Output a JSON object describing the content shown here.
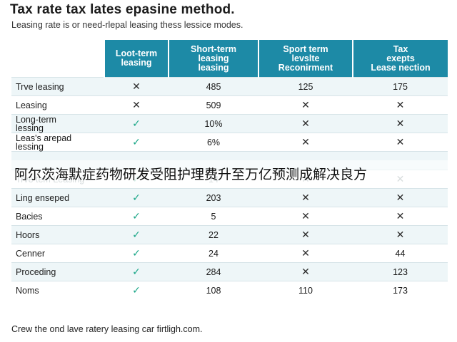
{
  "title": "Tax rate tax lates epasine method.",
  "subtitle": "Leasing rate is or need-rlepal leasing thess lessice modes.",
  "table": {
    "headers": [
      "",
      "Loot-term\nleasing",
      "Short-term\nleasing\nleasing",
      "Sport term\nlevslte\nReconirment",
      "Tax\nexepts\nLease nection"
    ],
    "rows": [
      {
        "label": "Trve leasing",
        "cells": [
          "✕",
          "485",
          "125",
          "175"
        ],
        "faded": false
      },
      {
        "label": "Leasing",
        "cells": [
          "✕",
          "509",
          "✕",
          "✕"
        ],
        "faded": false
      },
      {
        "label": "Long-term\nlessing",
        "cells": [
          "✓",
          "10%",
          "✕",
          "✕"
        ],
        "faded": false
      },
      {
        "label": "Leas's arepad\nlessing",
        "cells": [
          "✓",
          "6%",
          "✕",
          "✕"
        ],
        "faded": false
      },
      {
        "label": "",
        "cells": [
          "",
          "",
          "",
          ""
        ],
        "faded": false
      },
      {
        "label": "Trve tem Leasing",
        "cells": [
          "✓",
          "14",
          "✕",
          "✕"
        ],
        "faded": true
      },
      {
        "label": "Ling enseped",
        "cells": [
          "✓",
          "203",
          "✕",
          "✕"
        ],
        "faded": false
      },
      {
        "label": "Bacies",
        "cells": [
          "✓",
          "5",
          "✕",
          "✕"
        ],
        "faded": false
      },
      {
        "label": "Hoors",
        "cells": [
          "✓",
          "22",
          "✕",
          "✕"
        ],
        "faded": false
      },
      {
        "label": "Cenner",
        "cells": [
          "✓",
          "24",
          "✕",
          "44"
        ],
        "faded": false
      },
      {
        "label": "Proceding",
        "cells": [
          "✓",
          "284",
          "✕",
          "123"
        ],
        "faded": false
      },
      {
        "label": "Noms",
        "cells": [
          "✓",
          "108",
          "110",
          "173"
        ],
        "faded": false
      }
    ]
  },
  "overlay_caption": "阿尔茨海默症药物研发受阻护理费升至万亿预测成解决良方",
  "footer": "Crew the ond lave ratery leasing car firtligh.com.",
  "colors": {
    "header_bg": "#1d8aa6",
    "check": "#19a687",
    "stripe": "#eef6f8"
  }
}
